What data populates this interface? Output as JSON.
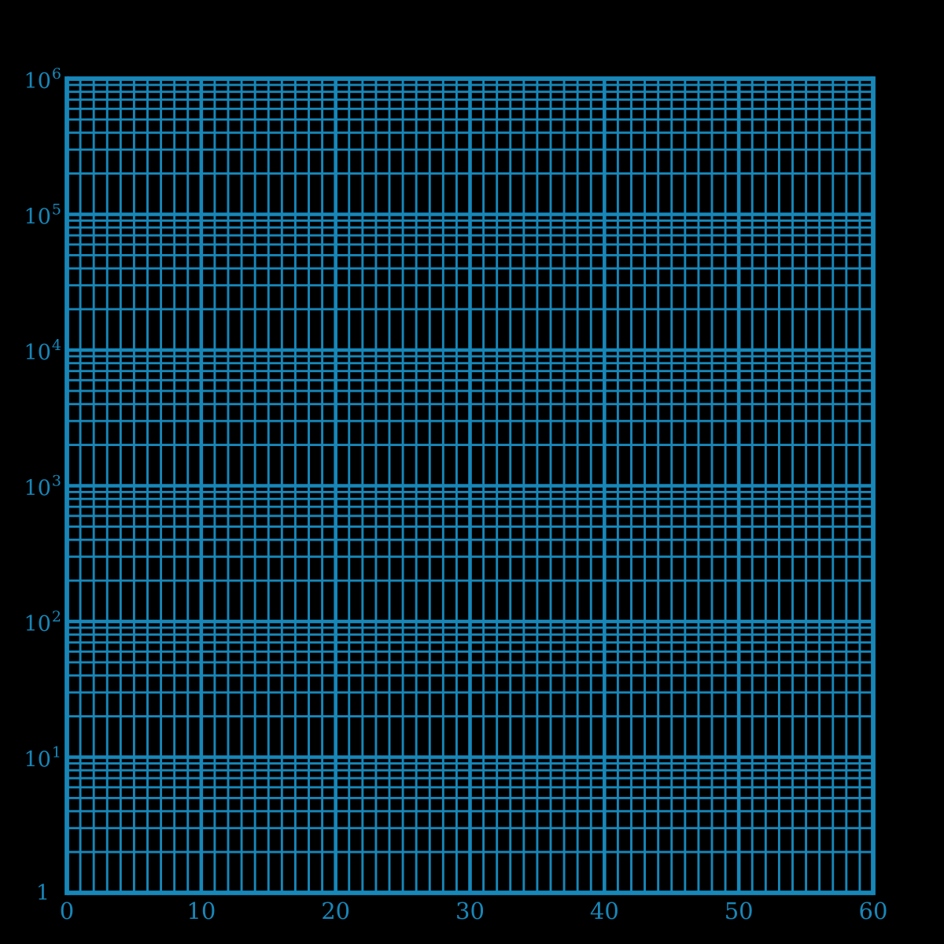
{
  "chart_data": {
    "type": "line",
    "title": "",
    "xlabel": "",
    "ylabel": "",
    "series": [],
    "description": "Empty semi-logarithmic graph paper: linear x-axis from 0 to 60, logarithmic y-axis from 1 to 10^6 (6 decades). Blue grid on black background, no plotted data.",
    "x_axis": {
      "scale": "linear",
      "min": 0,
      "max": 60,
      "minor_step": 1,
      "major_step": 10,
      "tick_values": [
        0,
        10,
        20,
        30,
        40,
        50,
        60
      ],
      "tick_labels": [
        "0",
        "10",
        "20",
        "30",
        "40",
        "50",
        "60"
      ]
    },
    "y_axis": {
      "scale": "log",
      "min": 1,
      "max": 1000000,
      "decades": 6,
      "tick_exponents": [
        6,
        5,
        4,
        3,
        2,
        1
      ],
      "tick_label_base": "10",
      "bottom_tick_label": "1",
      "minor_multiples": [
        2,
        3,
        4,
        5,
        6,
        7,
        8,
        9
      ]
    },
    "grid": {
      "show": true,
      "legend_position": "none"
    }
  },
  "style": {
    "background_color": "#000000",
    "grid_color": "#1787b9",
    "label_color": "#1787b9"
  }
}
